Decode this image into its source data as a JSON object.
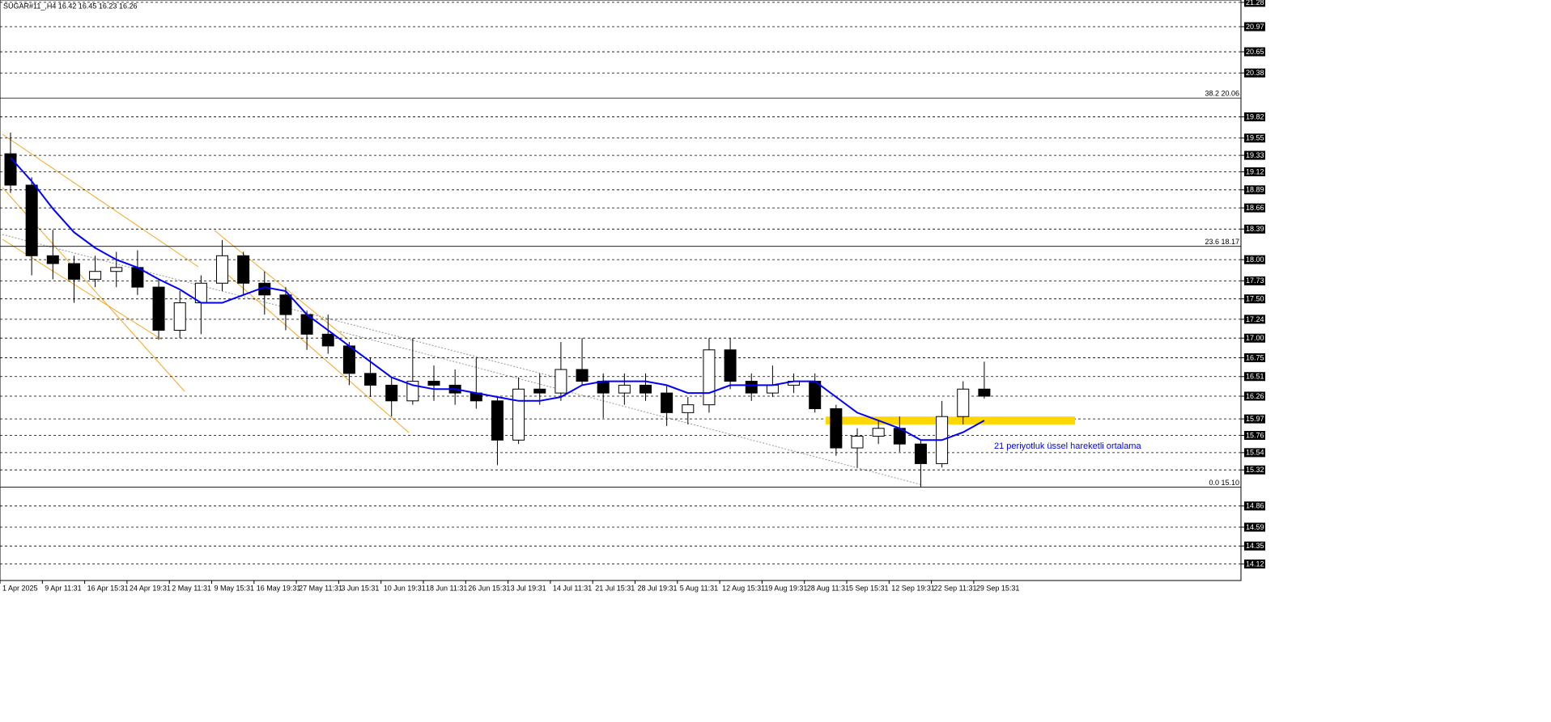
{
  "chart_data": {
    "type": "candlestick",
    "title": "SUGAR#11_,H4  16.42 16.45 16.23 16.26",
    "categories": [
      "1 Apr 2025",
      null,
      "9 Apr 11:31",
      null,
      "16 Apr 15:31",
      null,
      "24 Apr 19:31",
      null,
      "2 May 11:31",
      null,
      "9 May 15:31",
      null,
      "16 May 19:31",
      null,
      "27 May 11:31",
      null,
      "3 Jun 15:31",
      null,
      "10 Jun 19:31",
      null,
      "18 Jun 11:31",
      null,
      "26 Jun 15:31",
      null,
      "3 Jul 19:31",
      null,
      "14 Jul 11:31",
      null,
      "21 Jul 15:31",
      null,
      "28 Jul 19:31",
      null,
      "5 Aug 11:31",
      null,
      "12 Aug 15:31",
      null,
      "19 Aug 19:31",
      null,
      "28 Aug 11:31",
      null,
      "5 Sep 15:31",
      null,
      "12 Sep 19:31",
      null,
      "22 Sep 11:31",
      null,
      "29 Sep 15:31"
    ],
    "open": [
      19.35,
      18.95,
      18.05,
      17.95,
      17.75,
      17.85,
      17.9,
      17.65,
      17.1,
      17.45,
      17.7,
      18.05,
      17.7,
      17.55,
      17.3,
      17.05,
      16.9,
      16.55,
      16.4,
      16.2,
      16.45,
      16.4,
      16.3,
      16.2,
      15.7,
      16.35,
      16.3,
      16.6,
      16.45,
      16.3,
      16.4,
      16.3,
      16.05,
      16.15,
      16.85,
      16.45,
      16.3,
      16.4,
      16.45,
      16.1,
      15.6,
      15.75,
      15.85,
      15.65,
      15.4,
      16.0,
      16.35
    ],
    "high": [
      19.62,
      19.05,
      18.38,
      18.05,
      18.05,
      18.1,
      18.12,
      17.75,
      17.6,
      17.8,
      18.25,
      18.1,
      17.85,
      17.65,
      17.35,
      17.3,
      16.95,
      16.75,
      16.5,
      17.0,
      16.65,
      16.6,
      16.75,
      16.25,
      16.5,
      16.55,
      16.95,
      17.0,
      16.55,
      16.55,
      16.55,
      16.4,
      16.25,
      17.0,
      17.0,
      16.55,
      16.65,
      16.55,
      16.55,
      16.15,
      15.85,
      15.95,
      16.0,
      15.7,
      16.2,
      16.45,
      16.7
    ],
    "low": [
      18.85,
      17.8,
      17.75,
      17.45,
      17.65,
      17.65,
      17.55,
      16.98,
      17.0,
      17.05,
      17.6,
      17.55,
      17.3,
      17.1,
      16.85,
      16.8,
      16.4,
      16.25,
      16.0,
      16.15,
      16.2,
      16.15,
      16.1,
      15.38,
      15.65,
      16.15,
      16.2,
      16.4,
      15.98,
      16.15,
      16.2,
      15.88,
      15.9,
      16.05,
      16.35,
      16.2,
      16.25,
      16.3,
      16.05,
      15.5,
      15.35,
      15.65,
      15.55,
      15.1,
      15.35,
      15.9,
      16.23
    ],
    "close": [
      18.95,
      18.05,
      17.95,
      17.75,
      17.85,
      17.9,
      17.65,
      17.1,
      17.45,
      17.7,
      18.05,
      17.7,
      17.55,
      17.3,
      17.05,
      16.9,
      16.55,
      16.4,
      16.2,
      16.45,
      16.4,
      16.3,
      16.2,
      15.7,
      16.35,
      16.3,
      16.6,
      16.45,
      16.3,
      16.4,
      16.3,
      16.05,
      16.15,
      16.85,
      16.45,
      16.3,
      16.4,
      16.45,
      16.1,
      15.6,
      15.75,
      15.85,
      15.65,
      15.4,
      16.0,
      16.35,
      16.26
    ],
    "up_color": "#ffffff",
    "down_color": "#000000",
    "ema": {
      "name": "21 periyotluk üssel hareketli ortalama",
      "color": "#0000ff",
      "values": [
        19.3,
        19.0,
        18.65,
        18.35,
        18.15,
        18.0,
        17.9,
        17.75,
        17.62,
        17.45,
        17.45,
        17.55,
        17.65,
        17.6,
        17.3,
        17.1,
        16.9,
        16.7,
        16.5,
        16.4,
        16.35,
        16.35,
        16.3,
        16.25,
        16.2,
        16.2,
        16.25,
        16.4,
        16.45,
        16.45,
        16.45,
        16.4,
        16.3,
        16.3,
        16.4,
        16.4,
        16.4,
        16.45,
        16.45,
        16.25,
        16.05,
        15.95,
        15.85,
        15.7,
        15.7,
        15.8,
        15.95
      ]
    },
    "ylim": [
      13.91,
      21.31
    ],
    "yticks": [
      21.28,
      20.97,
      20.65,
      20.38,
      19.82,
      19.55,
      19.33,
      19.12,
      18.89,
      18.66,
      18.39,
      {
        "value": 18,
        "label": "18.00"
      },
      17.73,
      {
        "value": 17.5,
        "label": "17.50"
      },
      17.24,
      {
        "value": 17,
        "label": "17.00"
      },
      16.75,
      16.51,
      16.26,
      15.97,
      15.76,
      15.54,
      15.32,
      14.86,
      14.59,
      14.35,
      14.12
    ],
    "grid": true,
    "levels": [
      {
        "label": "38.2 20.06",
        "value": 20.06
      },
      {
        "label": "23.6 18.17",
        "value": 18.17
      },
      {
        "label": "0.0 15.10",
        "value": 15.1
      }
    ],
    "zone": {
      "range": [
        15.9,
        16.0
      ],
      "color": "#ffd700"
    }
  }
}
